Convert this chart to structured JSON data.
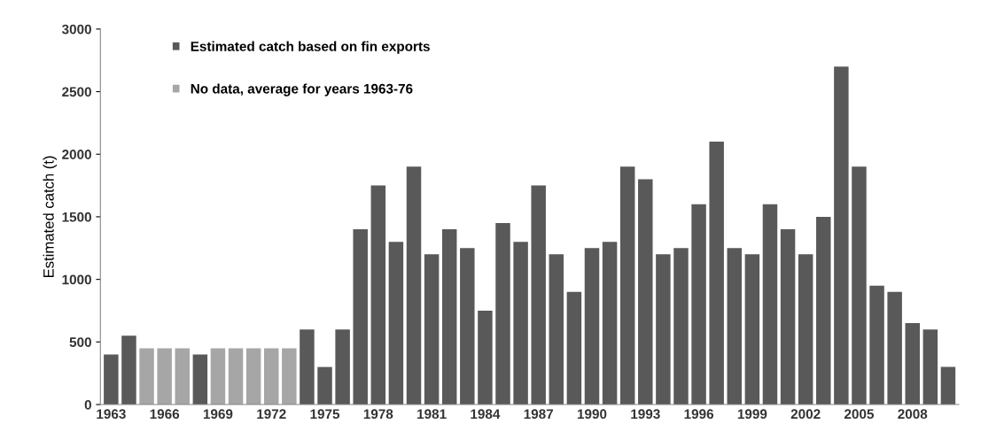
{
  "chart_data": {
    "type": "bar",
    "ylabel": "Estimated catch (t)",
    "categories": [
      "1963",
      null,
      null,
      "1966",
      null,
      null,
      "1969",
      null,
      null,
      "1972",
      null,
      null,
      "1975",
      null,
      null,
      "1978",
      null,
      null,
      "1981",
      null,
      null,
      "1984",
      null,
      null,
      "1987",
      null,
      null,
      "1990",
      null,
      null,
      "1993",
      null,
      null,
      "1996",
      null,
      null,
      "1999",
      null,
      null,
      "2002",
      null,
      null,
      "2005",
      null,
      null,
      "2008",
      null,
      null
    ],
    "series": [
      {
        "name": "Estimated catch based on fin exports",
        "color": "#595959",
        "values": [
          400,
          550,
          null,
          null,
          null,
          400,
          null,
          null,
          null,
          null,
          null,
          600,
          300,
          600,
          1400,
          1750,
          1300,
          1900,
          1200,
          1400,
          1250,
          750,
          1450,
          1300,
          1750,
          1200,
          900,
          1250,
          1300,
          1900,
          1800,
          1200,
          1250,
          1600,
          2100,
          1250,
          1200,
          1600,
          1400,
          1200,
          1500,
          2700,
          1900,
          950,
          900,
          650,
          600,
          300
        ]
      },
      {
        "name": "No data, average for years 1963-76",
        "color": "#a6a6a6",
        "values": [
          null,
          null,
          450,
          450,
          450,
          null,
          450,
          450,
          450,
          450,
          450,
          null,
          null,
          null,
          null,
          null,
          null,
          null,
          null,
          null,
          null,
          null,
          null,
          null,
          null,
          null,
          null,
          null,
          null,
          null,
          null,
          null,
          null,
          null,
          null,
          null,
          null,
          null,
          null,
          null,
          null,
          null,
          null,
          null,
          null,
          null,
          null,
          null
        ]
      }
    ],
    "ylim": [
      0,
      3000
    ],
    "yticks": [
      0,
      500,
      1000,
      1500,
      2000,
      2500,
      3000
    ],
    "grid": false,
    "legend": "top left"
  }
}
